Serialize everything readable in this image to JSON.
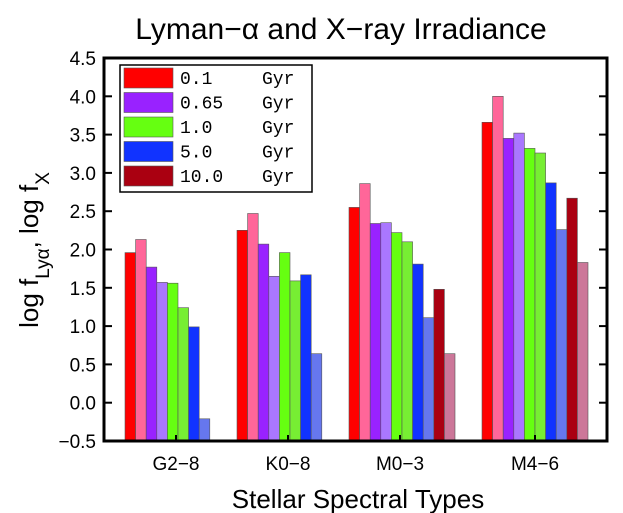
{
  "chart_data": {
    "type": "bar",
    "title": "Lyman−α and X−ray Irradiance",
    "xlabel": "Stellar Spectral Types",
    "ylabel": {
      "prefix": "log f",
      "sub1": "Lyα",
      "mid": ", log f",
      "sub2": "X"
    },
    "ylim": [
      -0.5,
      4.5
    ],
    "yticks": [
      -0.5,
      0.0,
      0.5,
      1.0,
      1.5,
      2.0,
      2.5,
      3.0,
      3.5,
      4.0,
      4.5
    ],
    "ytick_labels": [
      "−0.5",
      "0.0",
      "0.5",
      "1.0",
      "1.5",
      "2.0",
      "2.5",
      "3.0",
      "3.5",
      "4.0",
      "4.5"
    ],
    "categories": [
      "G2−8",
      "K0−8",
      "M0−3",
      "M4−6"
    ],
    "legend_position": "top-left",
    "series": [
      {
        "name": "0.1 Gyr",
        "legend_value": " 0.1",
        "legend_unit": "Gyr",
        "color": "#ff0000",
        "light_color": "#ff6699",
        "lya": [
          1.96,
          2.25,
          2.55,
          3.66
        ],
        "xray": [
          2.13,
          2.47,
          2.86,
          4.0
        ]
      },
      {
        "name": "0.65 Gyr",
        "legend_value": " 0.65",
        "legend_unit": "Gyr",
        "color": "#9922ff",
        "light_color": "#aa77ff",
        "lya": [
          1.77,
          2.07,
          2.34,
          3.45
        ],
        "xray": [
          1.57,
          1.65,
          2.35,
          3.52
        ]
      },
      {
        "name": "1.0 Gyr",
        "legend_value": " 1.0",
        "legend_unit": "Gyr",
        "color": "#66ff11",
        "light_color": "#77ee33",
        "lya": [
          1.56,
          1.96,
          2.22,
          3.32
        ],
        "xray": [
          1.24,
          1.59,
          2.1,
          3.26
        ]
      },
      {
        "name": "5.0 Gyr",
        "legend_value": " 5.0",
        "legend_unit": "Gyr",
        "color": "#1133ff",
        "light_color": "#6677ee",
        "lya": [
          0.99,
          1.67,
          1.81,
          2.87
        ],
        "xray": [
          -0.21,
          0.64,
          1.11,
          2.26
        ]
      },
      {
        "name": "10.0 Gyr",
        "legend_value": "10.0",
        "legend_unit": "Gyr",
        "color": "#aa0011",
        "light_color": "#cc7799",
        "lya": [
          null,
          null,
          1.48,
          2.67
        ],
        "xray": [
          null,
          null,
          0.64,
          1.83
        ]
      }
    ]
  }
}
